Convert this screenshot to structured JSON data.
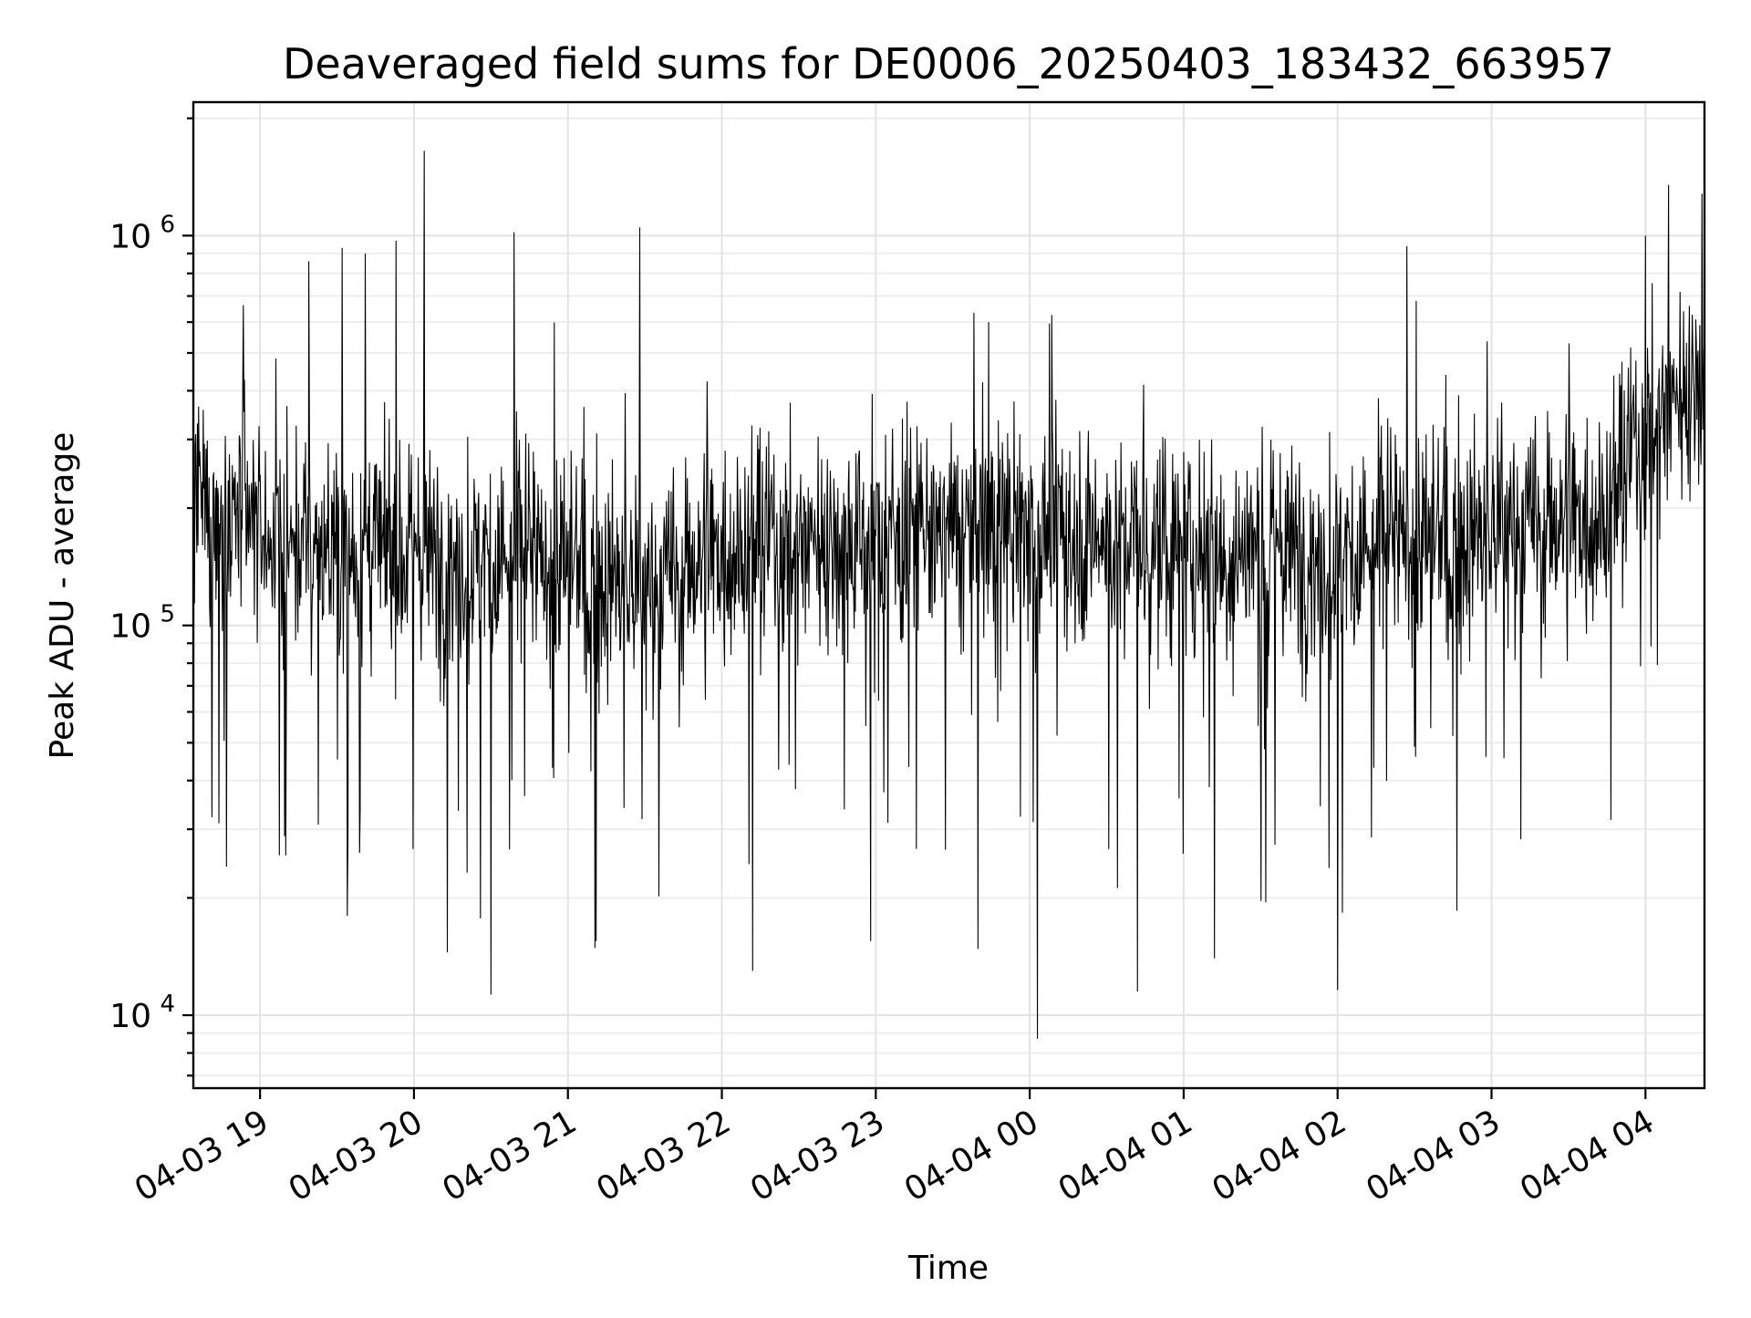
{
  "chart_data": {
    "type": "line",
    "title": "Deaveraged field sums for DE0006_20250403_183432_663957",
    "xlabel": "Time",
    "ylabel": "Peak ADU - average",
    "x_scale": "time",
    "y_scale": "log",
    "xlim": [
      "2025-04-03 18:34",
      "2025-04-04 04:23"
    ],
    "ylim": [
      6500,
      2200000
    ],
    "x_ticks": [
      {
        "time": "2025-04-03 19:00",
        "label": "04-03 19"
      },
      {
        "time": "2025-04-03 20:00",
        "label": "04-03 20"
      },
      {
        "time": "2025-04-03 21:00",
        "label": "04-03 21"
      },
      {
        "time": "2025-04-03 22:00",
        "label": "04-03 22"
      },
      {
        "time": "2025-04-03 23:00",
        "label": "04-03 23"
      },
      {
        "time": "2025-04-04 00:00",
        "label": "04-04 00"
      },
      {
        "time": "2025-04-04 01:00",
        "label": "04-04 01"
      },
      {
        "time": "2025-04-04 02:00",
        "label": "04-04 02"
      },
      {
        "time": "2025-04-04 03:00",
        "label": "04-04 03"
      },
      {
        "time": "2025-04-04 04:00",
        "label": "04-04 04"
      }
    ],
    "y_ticks": [
      {
        "value": 10000,
        "base": "10",
        "exp": "4"
      },
      {
        "value": 100000,
        "base": "10",
        "exp": "5"
      },
      {
        "value": 1000000,
        "base": "10",
        "exp": "6"
      }
    ],
    "grid": true,
    "legend": "none",
    "line_color": "#000000",
    "series": [
      {
        "trend": [
          {
            "time": "2025-04-03 18:34",
            "value": 200000
          },
          {
            "time": "2025-04-03 19:15",
            "value": 160000
          },
          {
            "time": "2025-04-03 20:00",
            "value": 150000
          },
          {
            "time": "2025-04-03 21:00",
            "value": 140000
          },
          {
            "time": "2025-04-03 21:30",
            "value": 120000
          },
          {
            "time": "2025-04-03 22:00",
            "value": 160000
          },
          {
            "time": "2025-04-03 23:00",
            "value": 170000
          },
          {
            "time": "2025-04-04 00:00",
            "value": 175000
          },
          {
            "time": "2025-04-04 01:00",
            "value": 160000
          },
          {
            "time": "2025-04-04 02:00",
            "value": 150000
          },
          {
            "time": "2025-04-04 03:00",
            "value": 170000
          },
          {
            "time": "2025-04-04 03:45",
            "value": 200000
          },
          {
            "time": "2025-04-04 04:00",
            "value": 320000
          },
          {
            "time": "2025-04-04 04:23",
            "value": 450000
          }
        ],
        "peaks": [
          {
            "time": "2025-04-03 20:04",
            "value": 1650000
          },
          {
            "time": "2025-04-03 21:28",
            "value": 1050000
          },
          {
            "time": "2025-04-03 20:39",
            "value": 1020000
          },
          {
            "time": "2025-04-03 19:53",
            "value": 970000
          },
          {
            "time": "2025-04-03 19:32",
            "value": 930000
          },
          {
            "time": "2025-04-03 19:41",
            "value": 900000
          },
          {
            "time": "2025-04-03 19:19",
            "value": 860000
          },
          {
            "time": "2025-04-04 02:27",
            "value": 940000
          },
          {
            "time": "2025-04-04 04:09",
            "value": 1350000
          },
          {
            "time": "2025-04-04 04:22",
            "value": 1280000
          },
          {
            "time": "2025-04-04 04:00",
            "value": 1000000
          },
          {
            "time": "2025-04-03 23:44",
            "value": 600000
          }
        ],
        "troughs": [
          {
            "time": "2025-04-04 00:03",
            "value": 8700
          },
          {
            "time": "2025-04-03 20:30",
            "value": 11300
          },
          {
            "time": "2025-04-04 00:42",
            "value": 11500
          },
          {
            "time": "2025-04-04 02:00",
            "value": 11600
          },
          {
            "time": "2025-04-03 22:12",
            "value": 13000
          },
          {
            "time": "2025-04-03 20:13",
            "value": 14500
          },
          {
            "time": "2025-04-03 21:11",
            "value": 15500
          },
          {
            "time": "2025-04-03 22:58",
            "value": 15500
          },
          {
            "time": "2025-04-03 19:34",
            "value": 18000
          },
          {
            "time": "2025-04-04 01:12",
            "value": 14000
          },
          {
            "time": "2025-04-04 01:32",
            "value": 19500
          }
        ]
      }
    ]
  }
}
